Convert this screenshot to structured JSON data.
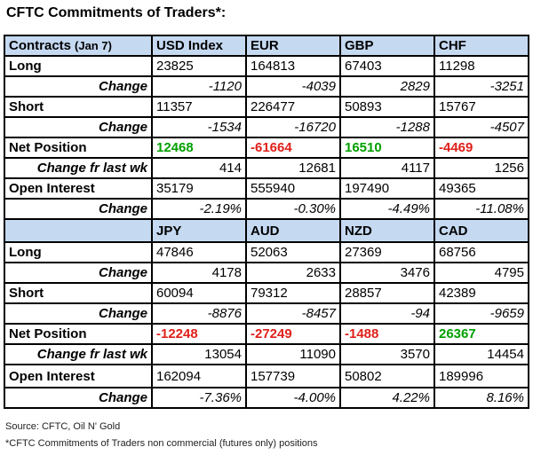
{
  "title": "CFTC Commitments of Traders*:",
  "header1": {
    "label": "Contracts",
    "sublabel": "(Jan 7)",
    "columns": [
      "USD Index",
      "EUR",
      "GBP",
      "CHF"
    ]
  },
  "block1": {
    "long": {
      "label": "Long",
      "values": [
        "23825",
        "164813",
        "67403",
        "11298"
      ]
    },
    "long_change": {
      "label": "Change",
      "values": [
        "-1120",
        "-4039",
        "2829",
        "-3251"
      ]
    },
    "short": {
      "label": "Short",
      "values": [
        "11357",
        "226477",
        "50893",
        "15767"
      ]
    },
    "short_change": {
      "label": "Change",
      "values": [
        "-1534",
        "-16720",
        "-1288",
        "-4507"
      ]
    },
    "net": {
      "label": "Net Position",
      "values": [
        "12468",
        "-61664",
        "16510",
        "-4469"
      ]
    },
    "net_change": {
      "label": "Change fr last wk",
      "values": [
        "414",
        "12681",
        "4117",
        "1256"
      ]
    },
    "oi": {
      "label": "Open Interest",
      "values": [
        "35179",
        "555940",
        "197490",
        "49365"
      ]
    },
    "oi_change": {
      "label": "Change",
      "values": [
        "-2.19%",
        "-0.30%",
        "-4.49%",
        "-11.08%"
      ]
    }
  },
  "header2": {
    "columns": [
      "JPY",
      "AUD",
      "NZD",
      "CAD"
    ]
  },
  "block2": {
    "long": {
      "label": "Long",
      "values": [
        "47846",
        "52063",
        "27369",
        "68756"
      ]
    },
    "long_change": {
      "label": "Change",
      "values": [
        "4178",
        "2633",
        "3476",
        "4795"
      ]
    },
    "short": {
      "label": "Short",
      "values": [
        "60094",
        "79312",
        "28857",
        "42389"
      ]
    },
    "short_change": {
      "label": "Change",
      "values": [
        "-8876",
        "-8457",
        "-94",
        "-9659"
      ]
    },
    "net": {
      "label": "Net Position",
      "values": [
        "-12248",
        "-27249",
        "-1488",
        "26367"
      ]
    },
    "net_change": {
      "label": "Change fr last wk",
      "values": [
        "13054",
        "11090",
        "3570",
        "14454"
      ]
    },
    "oi": {
      "label": "Open Interest",
      "values": [
        "162094",
        "157739",
        "50802",
        "189996"
      ]
    },
    "oi_change": {
      "label": "Change",
      "values": [
        "-7.36%",
        "-4.00%",
        "4.22%",
        "8.16%"
      ]
    }
  },
  "colors": {
    "header_bg": "#c5d9f1",
    "positive": "#00a000",
    "negative": "#e0201b"
  },
  "source": "Source: CFTC, Oil N' Gold",
  "footnote": "*CFTC Commitments of Traders non commercial (futures only) positions"
}
